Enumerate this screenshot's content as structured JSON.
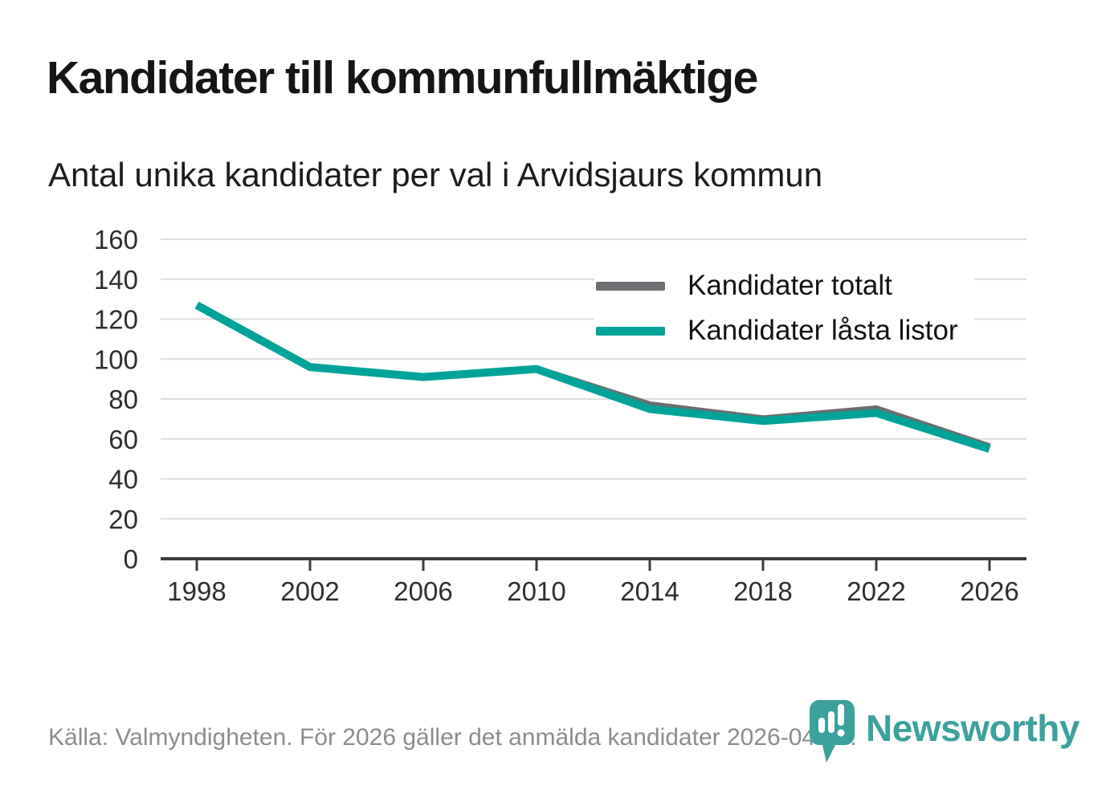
{
  "header": {
    "title": "Kandidater till kommunfullmäktige",
    "subtitle": "Antal unika kandidater per val i Arvidsjaurs kommun"
  },
  "chart_data": {
    "type": "line",
    "title": "Kandidater till kommunfullmäktige",
    "subtitle": "Antal unika kandidater per val i Arvidsjaurs kommun",
    "x": [
      1998,
      2002,
      2006,
      2010,
      2014,
      2018,
      2022,
      2026
    ],
    "series": [
      {
        "name": "Kandidater totalt",
        "color": "#6d6d71",
        "values": [
          127,
          96,
          91,
          95,
          77,
          70,
          75,
          56
        ]
      },
      {
        "name": "Kandidater låsta listor",
        "color": "#00a39a",
        "values": [
          127,
          96,
          91,
          95,
          75,
          69,
          73,
          55
        ]
      }
    ],
    "xlabel": "",
    "ylabel": "",
    "ylim": [
      0,
      160
    ],
    "ytick_step": 20,
    "grid": "horizontal",
    "grid_color": "#dcdcdc",
    "axis_color": "#3c3c3c",
    "tick_label_color": "#2e2e2e",
    "legend_position": "top-right-inside"
  },
  "footer": {
    "source": "Källa: Valmyndigheten. För 2026 gäller det anmälda kandidater 2026-04-10.",
    "brand": "Newsworthy",
    "brand_color": "#3ba19c"
  }
}
